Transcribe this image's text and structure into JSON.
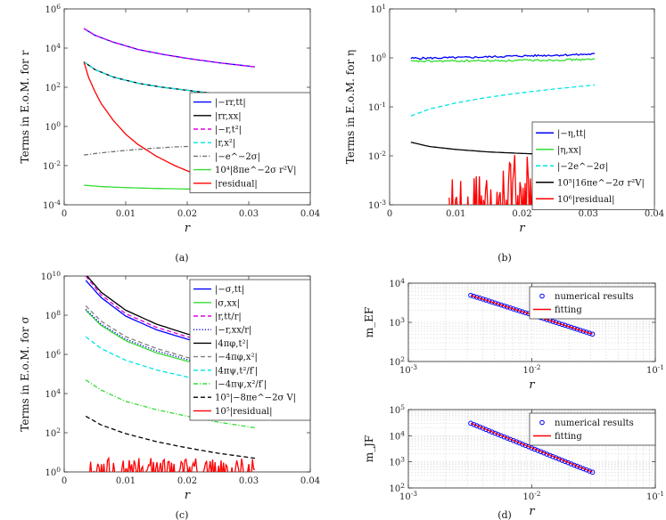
{
  "figure": {
    "captions": [
      "(a)",
      "(b)",
      "(c)",
      "(d)"
    ]
  },
  "chart_data": [
    {
      "id": "a",
      "type": "line",
      "yscale": "log",
      "xlabel": "r",
      "ylabel": "Terms in E.o.M. for r",
      "caption": "(a)",
      "xlim": [
        0,
        0.04
      ],
      "ylim": [
        0.0001,
        1000000
      ],
      "xticks": [
        "0",
        "0.01",
        "0.02",
        "0.03",
        "0.04"
      ],
      "yticks": [
        "10^-4",
        "10^-2",
        "10^0",
        "10^2",
        "10^4",
        "10^6"
      ],
      "legend_position": "right",
      "series": [
        {
          "name": "|−rr,tt|",
          "color": "#0000ff",
          "dash": "solid",
          "x": [
            0.0032,
            0.005,
            0.008,
            0.012,
            0.016,
            0.02,
            0.025,
            0.031
          ],
          "y": [
            100000,
            45000,
            20000,
            8500,
            4800,
            3000,
            1800,
            1100
          ]
        },
        {
          "name": "|rr,xx|",
          "color": "#000000",
          "dash": "solid",
          "x": [
            0.0032,
            0.005,
            0.008,
            0.012,
            0.016,
            0.02,
            0.025,
            0.031
          ],
          "y": [
            2000,
            800,
            330,
            160,
            100,
            70,
            45,
            30
          ]
        },
        {
          "name": "|−r,t²|",
          "color": "#e000e0",
          "dash": "dashed",
          "x": [
            0.0032,
            0.005,
            0.008,
            0.012,
            0.016,
            0.02,
            0.025,
            0.031
          ],
          "y": [
            100000,
            45000,
            20000,
            8500,
            4800,
            3000,
            1800,
            1100
          ]
        },
        {
          "name": "|r,x²|",
          "color": "#00e5e5",
          "dash": "dashed",
          "x": [
            0.0032,
            0.005,
            0.008,
            0.012,
            0.016,
            0.02,
            0.025,
            0.031
          ],
          "y": [
            2000,
            800,
            330,
            160,
            100,
            70,
            45,
            30
          ]
        },
        {
          "name": "|−e^−2σ|",
          "color": "#707070",
          "dash": "dashdot",
          "x": [
            0.0032,
            0.006,
            0.01,
            0.014,
            0.018,
            0.022,
            0.026,
            0.031
          ],
          "y": [
            0.035,
            0.045,
            0.06,
            0.075,
            0.09,
            0.1,
            0.11,
            0.12
          ]
        },
        {
          "name": "10⁴|8πe^−2σ r²V|",
          "color": "#33dd33",
          "dash": "solid",
          "x": [
            0.0032,
            0.006,
            0.01,
            0.015,
            0.02,
            0.025,
            0.031
          ],
          "y": [
            0.001,
            0.00085,
            0.00075,
            0.00068,
            0.00064,
            0.00062,
            0.0006
          ]
        },
        {
          "name": "|residual|",
          "color": "#ff0000",
          "dash": "solid",
          "x": [
            0.0032,
            0.004,
            0.005,
            0.006,
            0.008,
            0.01,
            0.012,
            0.015,
            0.018,
            0.021,
            0.024,
            0.027,
            0.031
          ],
          "y": [
            2000,
            300,
            60,
            15,
            2,
            0.4,
            0.12,
            0.03,
            0.01,
            0.004,
            0.002,
            0.001,
            0.0006
          ]
        }
      ]
    },
    {
      "id": "b",
      "type": "line",
      "yscale": "log",
      "xlabel": "r",
      "ylabel": "Terms in E.o.M. for η",
      "caption": "(b)",
      "xlim": [
        0,
        0.04
      ],
      "ylim": [
        0.001,
        10
      ],
      "xticks": [
        "0",
        "0.01",
        "0.02",
        "0.03",
        "0.04"
      ],
      "yticks": [
        "10^-3",
        "10^-2",
        "10^-1",
        "10^0",
        "10^1"
      ],
      "legend_position": "bottom-right",
      "series": [
        {
          "name": "|−η,tt|",
          "color": "#0000ff",
          "dash": "solid",
          "noise": true,
          "x": [
            0.0032,
            0.008,
            0.013,
            0.018,
            0.023,
            0.028,
            0.031
          ],
          "y": [
            0.98,
            1.0,
            1.03,
            1.08,
            1.12,
            1.16,
            1.2
          ]
        },
        {
          "name": "|η,xx|",
          "color": "#33dd33",
          "dash": "solid",
          "noise": true,
          "x": [
            0.0032,
            0.008,
            0.013,
            0.018,
            0.023,
            0.028,
            0.031
          ],
          "y": [
            0.85,
            0.86,
            0.87,
            0.88,
            0.9,
            0.92,
            0.93
          ]
        },
        {
          "name": "|−2e^−2σ|",
          "color": "#00e5e5",
          "dash": "dashed",
          "x": [
            0.0032,
            0.006,
            0.01,
            0.014,
            0.018,
            0.022,
            0.026,
            0.031
          ],
          "y": [
            0.065,
            0.09,
            0.12,
            0.15,
            0.18,
            0.21,
            0.24,
            0.28
          ]
        },
        {
          "name": "10⁵|16πe^−2σ r²V|",
          "color": "#000000",
          "dash": "solid",
          "x": [
            0.0032,
            0.006,
            0.01,
            0.015,
            0.02,
            0.025,
            0.031
          ],
          "y": [
            0.019,
            0.0155,
            0.0135,
            0.012,
            0.0112,
            0.0106,
            0.01
          ]
        },
        {
          "name": "10⁶|residual|",
          "color": "#ff0000",
          "dash": "solid",
          "spiky": true,
          "x": [
            0.009,
            0.012,
            0.015,
            0.018,
            0.021,
            0.024,
            0.027,
            0.031
          ],
          "y": [
            0.0012,
            0.0015,
            0.002,
            0.0035,
            0.005,
            0.004,
            0.003,
            0.002
          ]
        }
      ]
    },
    {
      "id": "c",
      "type": "line",
      "yscale": "log",
      "xlabel": "r",
      "ylabel": "Terms in E.o.M. for σ",
      "caption": "(c)",
      "xlim": [
        0,
        0.04
      ],
      "ylim": [
        1,
        10000000000
      ],
      "xticks": [
        "0",
        "0.01",
        "0.02",
        "0.03",
        "0.04"
      ],
      "yticks": [
        "10^0",
        "10^2",
        "10^4",
        "10^6",
        "10^8",
        "10^10"
      ],
      "legend_position": "right",
      "series": [
        {
          "name": "|−σ,tt|",
          "color": "#0000ff",
          "dash": "solid",
          "x": [
            0.0035,
            0.006,
            0.01,
            0.015,
            0.02,
            0.025,
            0.031
          ],
          "y": [
            6000000000,
            800000000,
            90000000,
            18000000,
            6000000,
            2500000,
            1000000
          ]
        },
        {
          "name": "|σ,xx|",
          "color": "#33dd33",
          "dash": "solid",
          "x": [
            0.0035,
            0.006,
            0.01,
            0.015,
            0.02,
            0.025,
            0.031
          ],
          "y": [
            180000000,
            30000000,
            5000000,
            1200000,
            450000,
            200000,
            90000
          ]
        },
        {
          "name": "|r,tt/r|",
          "color": "#e000e0",
          "dash": "dashed",
          "x": [
            0.0035,
            0.006,
            0.01,
            0.015,
            0.02,
            0.025,
            0.031
          ],
          "y": [
            10000000000,
            1100000000,
            120000000,
            24000000,
            8000000,
            3300000,
            1400000
          ]
        },
        {
          "name": "|−r,xx/r|",
          "color": "#0000cc",
          "dash": "dotted",
          "x": [
            0.0035,
            0.006,
            0.01,
            0.015,
            0.02,
            0.025,
            0.031
          ],
          "y": [
            200000000,
            35000000,
            6000000,
            1500000,
            550000,
            250000,
            110000
          ]
        },
        {
          "name": "|4πφ,t²|",
          "color": "#000000",
          "dash": "solid",
          "x": [
            0.0035,
            0.006,
            0.01,
            0.015,
            0.02,
            0.025,
            0.031
          ],
          "y": [
            12000000000,
            1500000000,
            180000000,
            35000000,
            11000000,
            4500000,
            1800000
          ]
        },
        {
          "name": "|−4πφ,x²|",
          "color": "#808080",
          "dash": "dashed",
          "x": [
            0.0035,
            0.006,
            0.01,
            0.015,
            0.02,
            0.025,
            0.031
          ],
          "y": [
            300000000,
            50000000,
            8000000,
            2000000,
            700000,
            300000,
            130000
          ]
        },
        {
          "name": "|4πψ,t²/f′|",
          "color": "#00e5e5",
          "dash": "dashed",
          "x": [
            0.0035,
            0.006,
            0.01,
            0.015,
            0.02,
            0.025,
            0.031
          ],
          "y": [
            8000000,
            2000000,
            500000,
            160000,
            70000,
            35000,
            18000
          ]
        },
        {
          "name": "|−4πψ,x²/f′|",
          "color": "#33dd33",
          "dash": "dashdot",
          "x": [
            0.0035,
            0.006,
            0.01,
            0.015,
            0.02,
            0.025,
            0.031
          ],
          "y": [
            50000,
            15000,
            4000,
            1500,
            700,
            350,
            180
          ]
        },
        {
          "name": "10⁵|−8πe^−2σ V|",
          "color": "#000000",
          "dash": "dashed",
          "x": [
            0.0035,
            0.006,
            0.01,
            0.015,
            0.02,
            0.025,
            0.031
          ],
          "y": [
            700,
            250,
            90,
            35,
            17,
            9,
            5
          ]
        },
        {
          "name": "10⁵|residual|",
          "color": "#ff0000",
          "dash": "solid",
          "spiky": true,
          "x": [
            0.0035,
            0.031
          ],
          "y": [
            1.8,
            1.8
          ]
        }
      ]
    },
    {
      "id": "d1",
      "type": "line",
      "xscale": "log",
      "yscale": "log",
      "xlabel": "r",
      "ylabel": "m_EF",
      "caption": "(d)",
      "xlim": [
        0.001,
        0.1
      ],
      "ylim": [
        100,
        10000
      ],
      "xticks": [
        "10^-3",
        "10^-2",
        "10^-1"
      ],
      "yticks": [
        "10^2",
        "10^3",
        "10^4"
      ],
      "grid": true,
      "legend_position": "top-right",
      "series": [
        {
          "name": "numerical results",
          "color": "#0000ff",
          "marker": "o",
          "x": [
            0.0032,
            0.0045,
            0.006,
            0.008,
            0.011,
            0.015,
            0.02,
            0.025,
            0.031
          ],
          "y": [
            4900,
            3500,
            2600,
            1950,
            1420,
            1040,
            780,
            620,
            500
          ]
        },
        {
          "name": "fitting",
          "color": "#ff0000",
          "dash": "solid",
          "x": [
            0.0032,
            0.031
          ],
          "y": [
            4900,
            500
          ]
        }
      ]
    },
    {
      "id": "d2",
      "type": "line",
      "xscale": "log",
      "yscale": "log",
      "xlabel": "r",
      "ylabel": "m_JF",
      "xlim": [
        0.001,
        0.1
      ],
      "ylim": [
        100,
        100000
      ],
      "xticks": [
        "10^-3",
        "10^-2",
        "10^-1"
      ],
      "yticks": [
        "10^2",
        "10^3",
        "10^4",
        "10^5"
      ],
      "grid": true,
      "legend_position": "top-right",
      "series": [
        {
          "name": "numerical results",
          "color": "#0000ff",
          "marker": "o",
          "x": [
            0.0032,
            0.0045,
            0.006,
            0.008,
            0.011,
            0.015,
            0.02,
            0.025,
            0.031
          ],
          "y": [
            30000,
            15500,
            8900,
            5200,
            2800,
            1550,
            900,
            590,
            400
          ]
        },
        {
          "name": "fitting",
          "color": "#ff0000",
          "dash": "solid",
          "x": [
            0.0032,
            0.031
          ],
          "y": [
            30000,
            400
          ]
        }
      ]
    }
  ]
}
